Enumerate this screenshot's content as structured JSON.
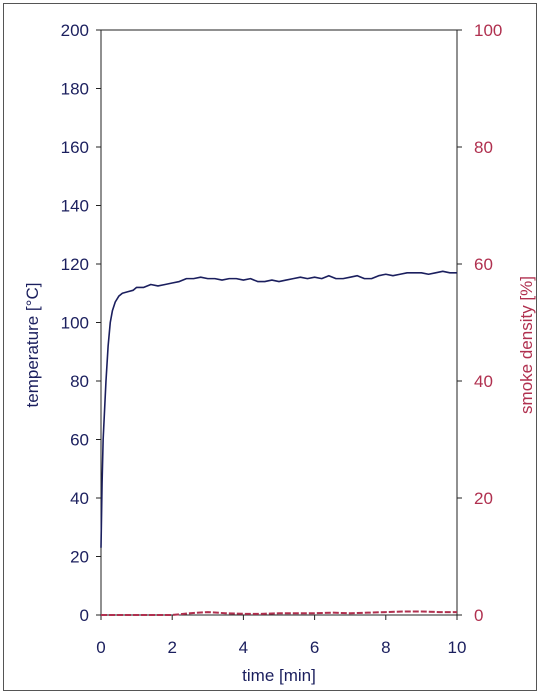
{
  "chart_data": {
    "type": "line",
    "title": "",
    "xlabel": "time [min]",
    "ylabel_left": "temperature [°C]",
    "ylabel_right": "smoke density [%]",
    "xlim": [
      0,
      10
    ],
    "ylim_left": [
      0,
      200
    ],
    "ylim_right": [
      0,
      100
    ],
    "x_ticks": [
      "0",
      "2",
      "4",
      "6",
      "8",
      "10"
    ],
    "y_left_ticks": [
      "0",
      "20",
      "40",
      "60",
      "80",
      "100",
      "120",
      "140",
      "160",
      "180",
      "200"
    ],
    "y_right_ticks": [
      "0",
      "20",
      "40",
      "60",
      "80",
      "100"
    ],
    "grid": false,
    "colors": {
      "temperature": "#1b1f5e",
      "smoke": "#b0304f"
    },
    "series": [
      {
        "axis": "left",
        "x": [
          0,
          0.03,
          0.06,
          0.1,
          0.14,
          0.2,
          0.26,
          0.32,
          0.4,
          0.5,
          0.6,
          0.75,
          0.9,
          1.0,
          1.2,
          1.4,
          1.6,
          1.8,
          2.0,
          2.2,
          2.4,
          2.6,
          2.8,
          3.0,
          3.2,
          3.4,
          3.6,
          3.8,
          4.0,
          4.2,
          4.4,
          4.6,
          4.8,
          5.0,
          5.2,
          5.4,
          5.6,
          5.8,
          6.0,
          6.2,
          6.4,
          6.6,
          6.8,
          7.0,
          7.2,
          7.4,
          7.6,
          7.8,
          8.0,
          8.2,
          8.4,
          8.6,
          8.8,
          9.0,
          9.2,
          9.4,
          9.6,
          9.8,
          10.0
        ],
        "y": [
          23,
          45,
          60,
          70,
          80,
          92,
          100,
          104,
          107,
          109,
          110,
          110.5,
          111,
          112,
          112,
          113,
          112.5,
          113,
          113.5,
          114,
          115,
          115,
          115.5,
          115,
          115,
          114.5,
          115,
          115,
          114.5,
          115,
          114,
          114,
          114.5,
          114,
          114.5,
          115,
          115.5,
          115,
          115.5,
          115,
          116,
          115,
          115,
          115.5,
          116,
          115,
          115,
          116,
          116.5,
          116,
          116.5,
          117,
          117,
          117,
          116.5,
          117,
          117.5,
          117,
          117
        ]
      },
      {
        "axis": "right",
        "x": [
          0,
          0.5,
          1,
          1.5,
          2,
          2.5,
          3,
          3.5,
          4,
          4.5,
          5,
          5.5,
          6,
          6.5,
          7,
          7.5,
          8,
          8.5,
          9,
          9.5,
          10
        ],
        "y": [
          0,
          0,
          0,
          0,
          0,
          0.3,
          0.5,
          0.3,
          0.2,
          0.2,
          0.3,
          0.3,
          0.3,
          0.4,
          0.3,
          0.4,
          0.5,
          0.6,
          0.6,
          0.5,
          0.5
        ]
      }
    ]
  }
}
